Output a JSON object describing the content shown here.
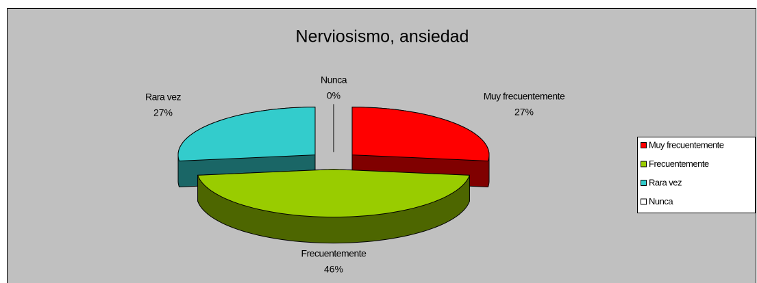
{
  "chart_data": {
    "type": "pie3d",
    "title": "Nerviosismo, ansiedad",
    "categories": [
      "Muy frecuentemente",
      "Frecuentemente",
      "Rara vez",
      "Nunca"
    ],
    "values": [
      27,
      46,
      27,
      0
    ],
    "value_labels": [
      "27%",
      "46%",
      "27%",
      "0%"
    ],
    "colors": [
      "#ff0000",
      "#99cc00",
      "#33cccc",
      "#ffffff"
    ],
    "legend": "right"
  }
}
